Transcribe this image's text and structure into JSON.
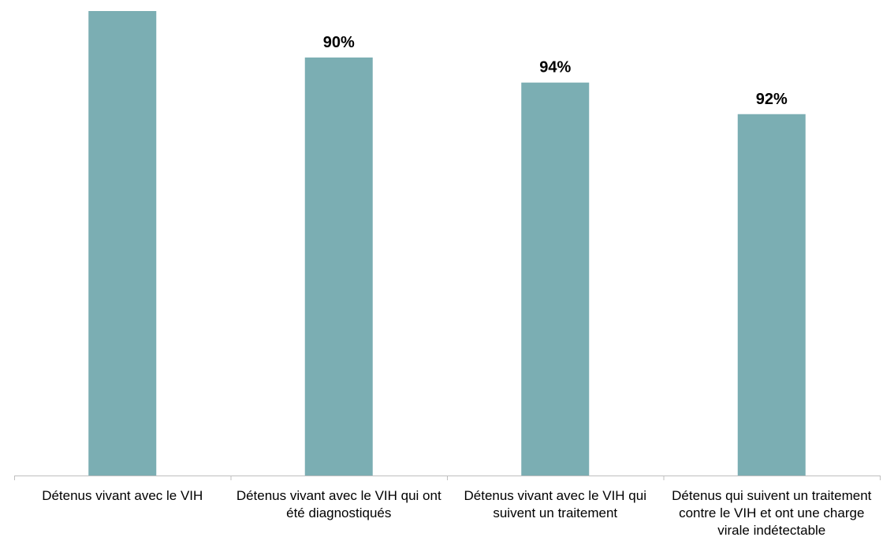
{
  "colors": {
    "bar": "#7BAEB3",
    "axis": "#BFBFBF",
    "text": "#000000"
  },
  "chart_data": {
    "type": "bar",
    "title": "",
    "xlabel": "",
    "ylabel": "",
    "ylim": [
      0,
      100
    ],
    "categories": [
      "Détenus vivant avec le VIH",
      "Détenus vivant avec le VIH qui ont été diagnostiqués",
      "Détenus vivant avec le VIH qui suivent un traitement",
      "Détenus qui suivent un traitement contre le VIH et ont une charge virale indétectable"
    ],
    "values": [
      100,
      90,
      84.6,
      77.8
    ],
    "data_labels": [
      "",
      "90%",
      "94%",
      "92%"
    ],
    "grid": false,
    "legend": "none"
  }
}
